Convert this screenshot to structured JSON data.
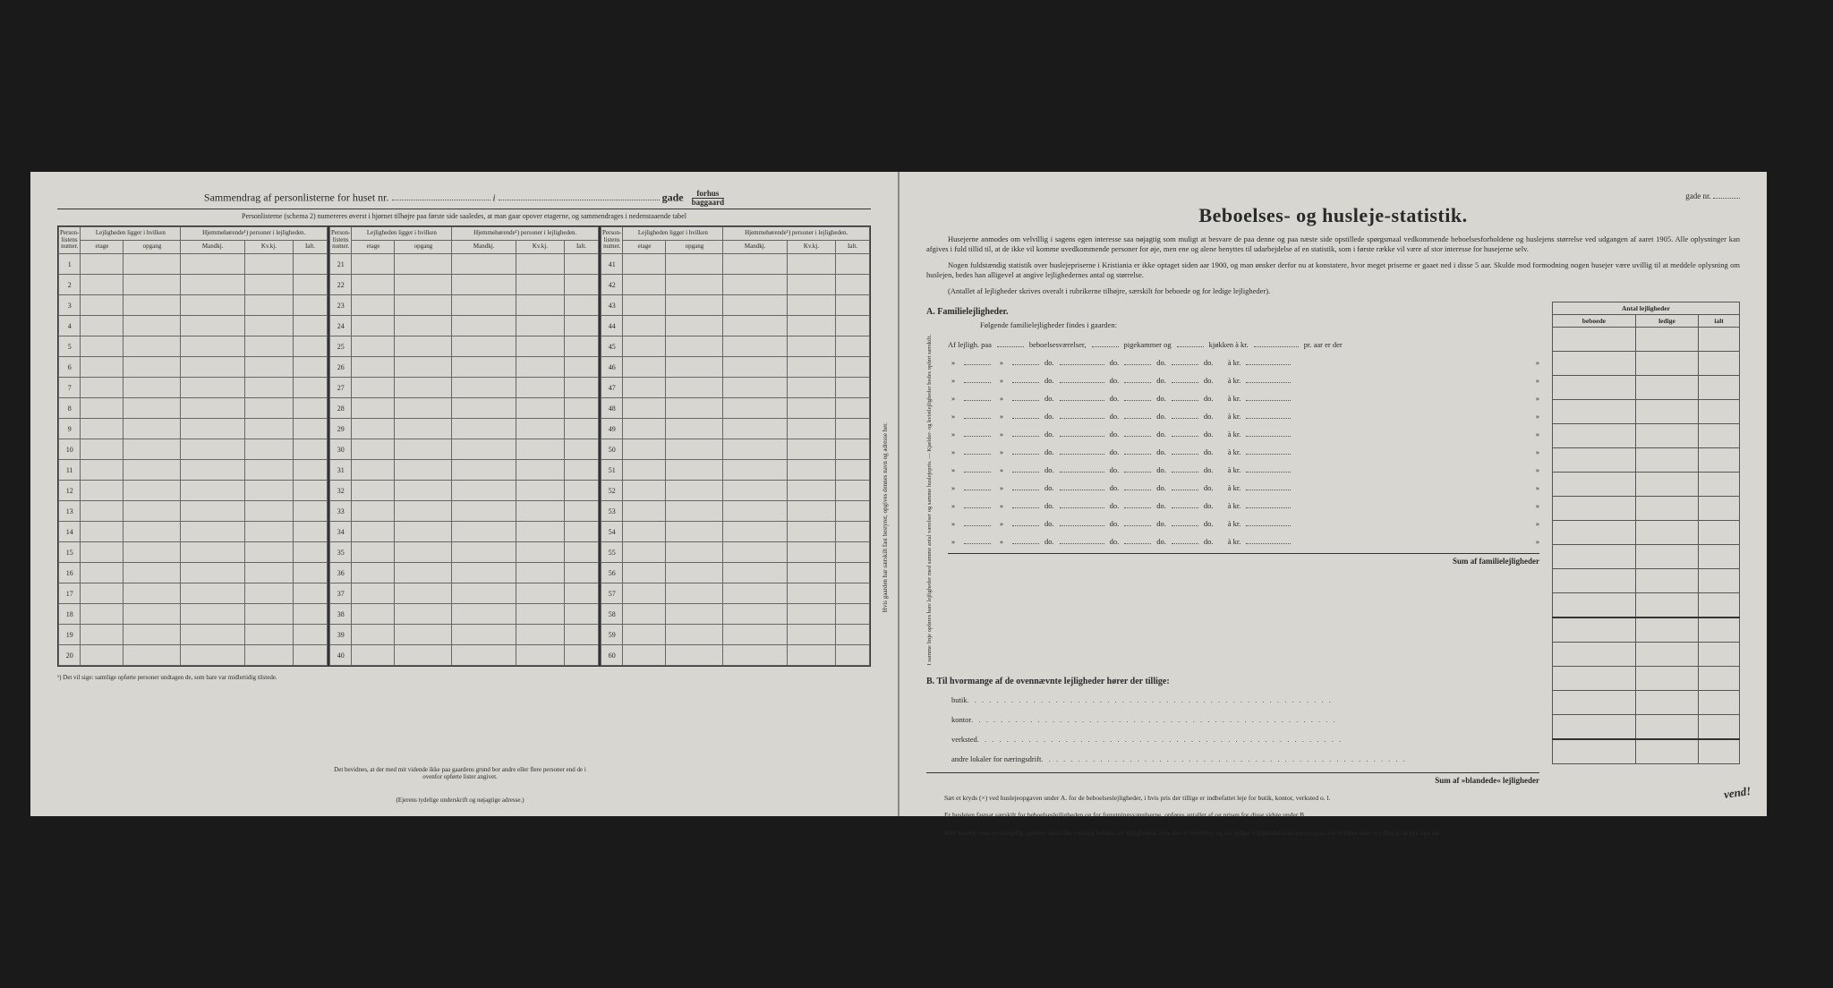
{
  "left": {
    "header_prefix": "Sammendrag af personlisterne for huset nr.",
    "header_i": "i",
    "header_gade": "gade",
    "header_forhus": "forhus",
    "header_baggaard": "baggaard",
    "subtext": "Personlisterne (schema 2) numereres øverst i hjørnet tilhøjre paa første side saaledes, at man gaar opover etagerne, og sammendrages i nedenstaaende tabel",
    "col_person": "Person-listens numer.",
    "col_lejlighed": "Lejligheden ligger i hvilken",
    "col_hjem": "Hjemmehørende¹) personer i lejligheden.",
    "sub_etage": "etage",
    "sub_opgang": "opgang",
    "sub_mandkj": "Mandkj.",
    "sub_kvkj": "Kv.kj.",
    "sub_ialt": "Ialt.",
    "rows1": [
      "1",
      "2",
      "3",
      "4",
      "5",
      "6",
      "7",
      "8",
      "9",
      "10",
      "11",
      "12",
      "13",
      "14",
      "15",
      "16",
      "17",
      "18",
      "19",
      "20"
    ],
    "rows2": [
      "21",
      "22",
      "23",
      "24",
      "25",
      "26",
      "27",
      "28",
      "29",
      "30",
      "31",
      "32",
      "33",
      "34",
      "35",
      "36",
      "37",
      "38",
      "39",
      "40"
    ],
    "rows3": [
      "41",
      "42",
      "43",
      "44",
      "45",
      "46",
      "47",
      "48",
      "49",
      "50",
      "51",
      "52",
      "53",
      "54",
      "55",
      "56",
      "57",
      "58",
      "59",
      "60"
    ],
    "footnote": "¹) Det vil sige: samtlige opførte personer undtagen de, som bare var midlertidig tilstede.",
    "witness": "Det bevidnes, at der med mit vidende ikke paa gaardens grund bor andre eller flere personer end de i ovenfor opførte lister angivet.",
    "sig": "(Ejerens tydelige underskrift og nøjagtige adresse.)",
    "vertical": "Hvis gaarden har særskilt fast bestyrer, opgives dennes navn og adresse her."
  },
  "right": {
    "gade": "gade nr.",
    "title": "Beboelses- og husleje-statistik.",
    "para1": "Husejerne anmodes om velvillig i sagens egen interesse saa nøjagtig som muligt at besvare de paa denne og paa næste side opstillede spørgsmaal vedkommende beboelsesforholdene og huslejens størrelse ved udgangen af aaret 1905. Alle oplysninger kan afgives i fuld tillid til, at de ikke vil komme uvedkommende personer for øje, men ene og alene benyttes til udarbejdelse af en statistik, som i første række vil være af stor interesse for husejerne selv.",
    "para2": "Nogen fuldstændig statistik over huslejepriserne i Kristiania er ikke optaget siden aar 1900, og man ønsker derfor nu at konstatere, hvor meget priserne er gaaet ned i disse 5 aar. Skulde mod formodning nogen husejer være uvillig til at meddele oplysning om huslejen, bedes han alligevel at angive lejlighedernes antal og størrelse.",
    "para3": "(Antallet af lejligheder skrives overalt i rubrikerne tilhøjre, særskilt for beboede og for ledige lejligheder).",
    "A_label": "A.  Familielejligheder.",
    "A_sub": "Følgende familielejligheder findes i gaarden:",
    "A_rot": "I samme linje opføres bare lejligheder med samme antal værelser og samme huslejepris. — Kjælder- og kvistlejligheder bedes opført særskilt.",
    "A_first_prefix": "Af lejligh. paa",
    "A_beb": "beboelsesværelser,",
    "A_pige": "pigekammer og",
    "A_kjok": "kjøkken à kr.",
    "A_praar": "pr. aar er der",
    "A_do": "do.",
    "A_akr": "à kr.",
    "A_sum": "Sum af familielejligheder",
    "B_label": "B.  Til hvormange af de ovennævnte lejligheder hører der tillige:",
    "B_items": [
      "butik",
      "kontor",
      "verksted",
      "andre lokaler for næringsdrift"
    ],
    "B_sum": "Sum af »blandede« lejligheder",
    "side_header": "Antal lejligheder",
    "side_cols": [
      "beboede",
      "ledige",
      "ialt"
    ],
    "foot1": "Sæt et kryds (×) ved huslejeopgaven under A. for de beboelseslejligheder, i hvis pris der tillige er indbefattet leje for butik, kontor, verksted o. l.",
    "foot2": "Er huslejen fastsat særskilt for beboelseslejligheden og for forretningsværelserne, opføres antallet af og prisen for disse sidste under B.",
    "foot3": "Som husleje maa selvfølgelig opføres, hvad der virkelig betales for lejligheden, hvis den er bortlejet, og for ledige lejligheder den nøjeste pris, for hvilken man er villig til at leje den ud.",
    "vend": "vend!"
  }
}
